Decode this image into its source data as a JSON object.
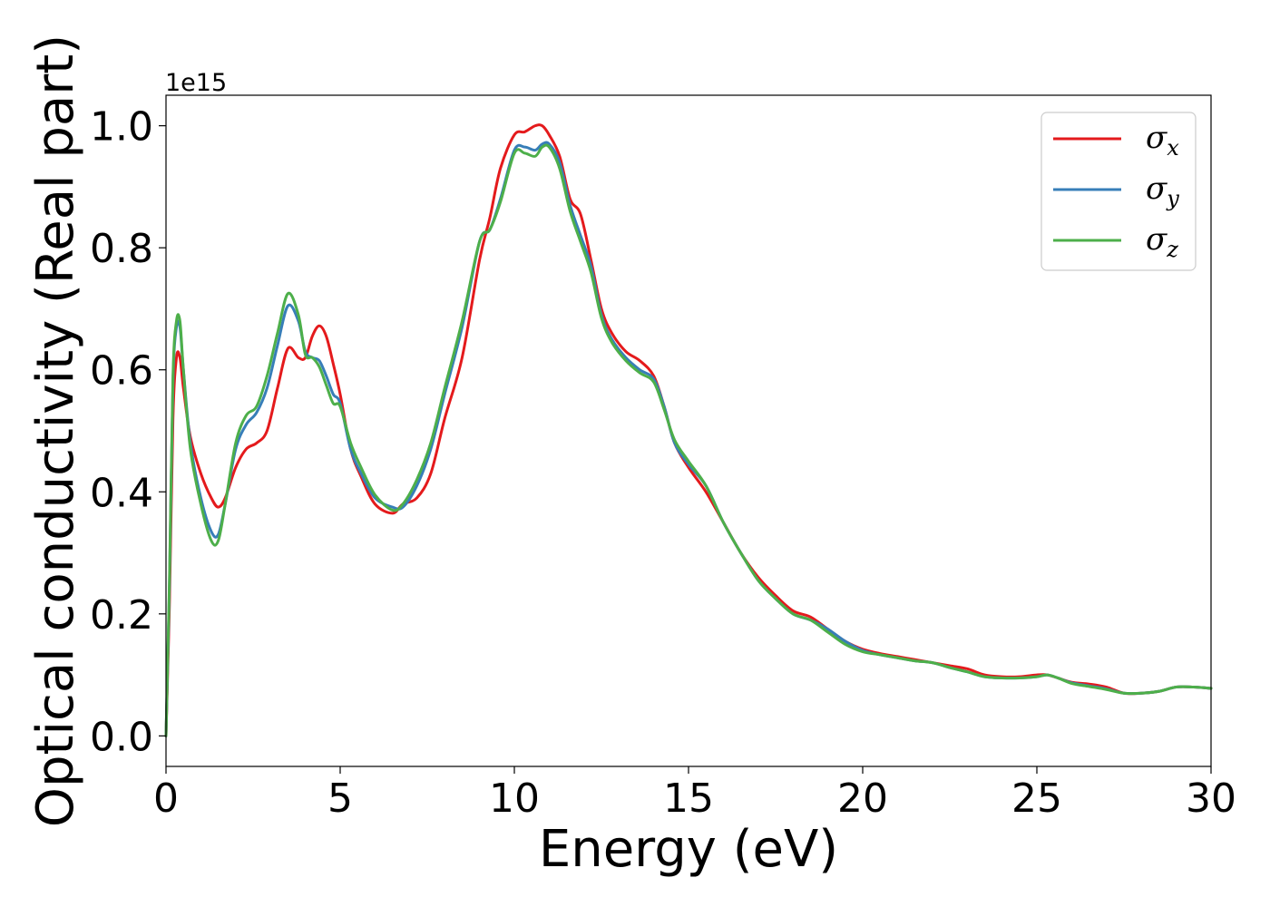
{
  "chart_data": {
    "type": "line",
    "xlabel": "Energy (eV)",
    "ylabel": "Optical conductivity (Real part)",
    "y_offset_text": "1e15",
    "xlim": [
      0,
      30
    ],
    "ylim": [
      -0.05,
      1.05
    ],
    "x_ticks": [
      0,
      5,
      10,
      15,
      20,
      25,
      30
    ],
    "x_tick_labels": [
      "0",
      "5",
      "10",
      "15",
      "20",
      "25",
      "30"
    ],
    "y_ticks": [
      0.0,
      0.2,
      0.4,
      0.6,
      0.8,
      1.0
    ],
    "y_tick_labels": [
      "0.0",
      "0.2",
      "0.4",
      "0.6",
      "0.8",
      "1.0"
    ],
    "grid": false,
    "legend_position": "top-right",
    "series": [
      {
        "name": "σx",
        "symbol": "σ",
        "subscript": "x",
        "color": "#e41a1c",
        "x": [
          0,
          0.1,
          0.2,
          0.3,
          0.4,
          0.5,
          0.7,
          1.0,
          1.3,
          1.5,
          1.7,
          2.0,
          2.3,
          2.6,
          2.9,
          3.2,
          3.5,
          3.8,
          4.0,
          4.2,
          4.4,
          4.6,
          4.8,
          5.0,
          5.3,
          5.6,
          6.0,
          6.5,
          6.8,
          7.2,
          7.6,
          8.0,
          8.5,
          9.0,
          9.3,
          9.6,
          10.0,
          10.3,
          10.6,
          10.8,
          11.0,
          11.3,
          11.6,
          11.9,
          12.2,
          12.5,
          12.8,
          13.2,
          13.6,
          14.0,
          14.3,
          14.6,
          15.0,
          15.5,
          16.0,
          16.5,
          17.0,
          17.5,
          18.0,
          18.5,
          19.0,
          19.5,
          20.0,
          20.5,
          21.0,
          21.5,
          22.0,
          22.5,
          23.0,
          23.5,
          24.0,
          24.5,
          25.0,
          25.3,
          25.6,
          26.0,
          26.5,
          27.0,
          27.5,
          28.0,
          28.5,
          29.0,
          29.5,
          30.0
        ],
        "y": [
          0.0,
          0.22,
          0.52,
          0.62,
          0.62,
          0.57,
          0.49,
          0.43,
          0.39,
          0.375,
          0.39,
          0.44,
          0.47,
          0.48,
          0.5,
          0.57,
          0.635,
          0.62,
          0.62,
          0.655,
          0.672,
          0.655,
          0.61,
          0.56,
          0.47,
          0.425,
          0.38,
          0.365,
          0.38,
          0.39,
          0.43,
          0.52,
          0.62,
          0.78,
          0.85,
          0.93,
          0.985,
          0.99,
          1.0,
          1.0,
          0.985,
          0.95,
          0.88,
          0.855,
          0.78,
          0.7,
          0.66,
          0.63,
          0.615,
          0.59,
          0.54,
          0.48,
          0.44,
          0.4,
          0.35,
          0.3,
          0.26,
          0.23,
          0.205,
          0.195,
          0.175,
          0.155,
          0.142,
          0.135,
          0.13,
          0.125,
          0.12,
          0.115,
          0.11,
          0.1,
          0.097,
          0.097,
          0.1,
          0.1,
          0.095,
          0.088,
          0.085,
          0.08,
          0.07,
          0.07,
          0.073,
          0.08,
          0.08,
          0.078
        ]
      },
      {
        "name": "σy",
        "symbol": "σ",
        "subscript": "y",
        "color": "#377eb8",
        "x": [
          0,
          0.1,
          0.2,
          0.3,
          0.4,
          0.5,
          0.7,
          1.0,
          1.3,
          1.5,
          1.7,
          2.0,
          2.3,
          2.6,
          2.9,
          3.2,
          3.5,
          3.8,
          4.0,
          4.2,
          4.4,
          4.6,
          4.8,
          5.0,
          5.3,
          5.6,
          6.0,
          6.5,
          6.8,
          7.2,
          7.6,
          8.0,
          8.5,
          9.0,
          9.3,
          9.6,
          10.0,
          10.3,
          10.6,
          10.8,
          11.0,
          11.3,
          11.6,
          11.9,
          12.2,
          12.5,
          12.8,
          13.2,
          13.6,
          14.0,
          14.3,
          14.6,
          15.0,
          15.5,
          16.0,
          16.5,
          17.0,
          17.5,
          18.0,
          18.5,
          19.0,
          19.5,
          20.0,
          20.5,
          21.0,
          21.5,
          22.0,
          22.5,
          23.0,
          23.5,
          24.0,
          24.5,
          25.0,
          25.3,
          25.6,
          26.0,
          26.5,
          27.0,
          27.5,
          28.0,
          28.5,
          29.0,
          29.5,
          30.0
        ],
        "y": [
          0.0,
          0.25,
          0.58,
          0.67,
          0.67,
          0.6,
          0.48,
          0.39,
          0.335,
          0.33,
          0.38,
          0.47,
          0.51,
          0.53,
          0.57,
          0.64,
          0.705,
          0.68,
          0.63,
          0.62,
          0.615,
          0.59,
          0.56,
          0.545,
          0.47,
          0.43,
          0.39,
          0.375,
          0.375,
          0.41,
          0.47,
          0.56,
          0.67,
          0.81,
          0.83,
          0.88,
          0.96,
          0.965,
          0.96,
          0.97,
          0.97,
          0.94,
          0.87,
          0.82,
          0.77,
          0.69,
          0.65,
          0.62,
          0.6,
          0.585,
          0.54,
          0.48,
          0.445,
          0.41,
          0.35,
          0.3,
          0.255,
          0.225,
          0.2,
          0.19,
          0.175,
          0.155,
          0.14,
          0.133,
          0.128,
          0.123,
          0.12,
          0.112,
          0.105,
          0.097,
          0.095,
          0.095,
          0.097,
          0.1,
          0.095,
          0.087,
          0.082,
          0.077,
          0.07,
          0.07,
          0.073,
          0.08,
          0.08,
          0.078
        ]
      },
      {
        "name": "σz",
        "symbol": "σ",
        "subscript": "z",
        "color": "#4daf4a",
        "x": [
          0,
          0.1,
          0.2,
          0.3,
          0.4,
          0.5,
          0.7,
          1.0,
          1.3,
          1.5,
          1.7,
          2.0,
          2.3,
          2.6,
          2.9,
          3.2,
          3.5,
          3.8,
          4.0,
          4.2,
          4.4,
          4.6,
          4.8,
          5.0,
          5.3,
          5.6,
          6.0,
          6.5,
          6.8,
          7.2,
          7.6,
          8.0,
          8.5,
          9.0,
          9.3,
          9.6,
          10.0,
          10.3,
          10.6,
          10.8,
          11.0,
          11.3,
          11.6,
          11.9,
          12.2,
          12.5,
          12.8,
          13.2,
          13.6,
          14.0,
          14.3,
          14.6,
          15.0,
          15.5,
          16.0,
          16.5,
          17.0,
          17.5,
          18.0,
          18.5,
          19.0,
          19.5,
          20.0,
          20.5,
          21.0,
          21.5,
          22.0,
          22.5,
          23.0,
          23.5,
          24.0,
          24.5,
          25.0,
          25.3,
          25.6,
          26.0,
          26.5,
          27.0,
          27.5,
          28.0,
          28.5,
          29.0,
          29.5,
          30.0
        ],
        "y": [
          0.0,
          0.26,
          0.59,
          0.68,
          0.68,
          0.6,
          0.47,
          0.38,
          0.32,
          0.32,
          0.38,
          0.48,
          0.525,
          0.54,
          0.59,
          0.66,
          0.725,
          0.69,
          0.625,
          0.62,
          0.605,
          0.575,
          0.545,
          0.54,
          0.48,
          0.44,
          0.395,
          0.37,
          0.38,
          0.42,
          0.48,
          0.57,
          0.68,
          0.81,
          0.83,
          0.875,
          0.955,
          0.955,
          0.95,
          0.965,
          0.965,
          0.93,
          0.86,
          0.81,
          0.76,
          0.685,
          0.645,
          0.615,
          0.595,
          0.58,
          0.535,
          0.485,
          0.45,
          0.41,
          0.35,
          0.3,
          0.255,
          0.225,
          0.2,
          0.19,
          0.17,
          0.15,
          0.138,
          0.133,
          0.128,
          0.123,
          0.12,
          0.112,
          0.105,
          0.097,
          0.095,
          0.095,
          0.097,
          0.1,
          0.095,
          0.086,
          0.081,
          0.076,
          0.07,
          0.07,
          0.073,
          0.08,
          0.08,
          0.078
        ]
      }
    ]
  }
}
